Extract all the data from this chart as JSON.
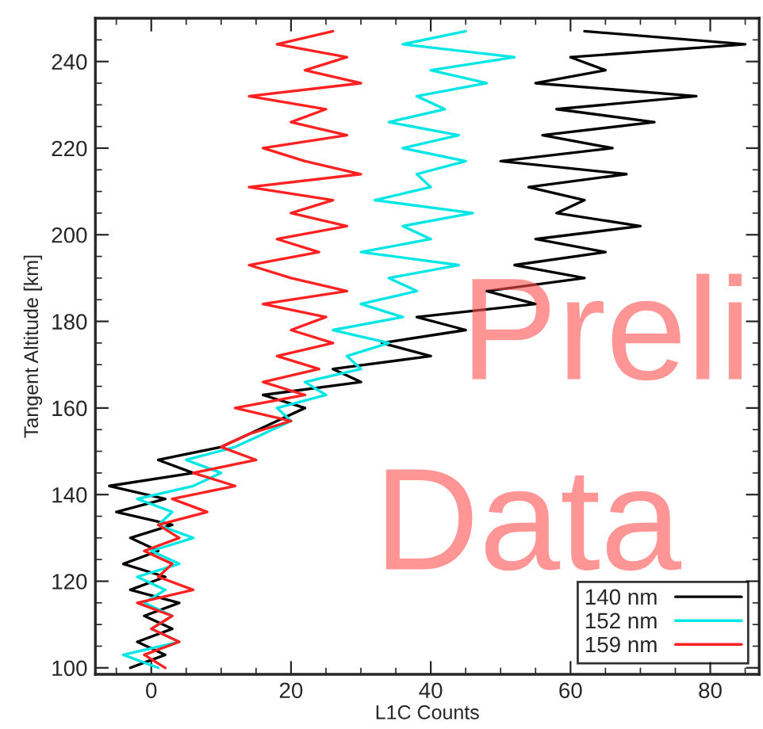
{
  "chart_data": {
    "type": "line",
    "orientation": "horizontal",
    "xlabel": "L1C Counts",
    "ylabel": "Tangent Altitude [km]",
    "xlim": [
      -8,
      87
    ],
    "xticks": [
      0,
      20,
      40,
      60,
      80
    ],
    "ylim": [
      98.5,
      250
    ],
    "yticks": [
      100,
      120,
      140,
      160,
      180,
      200,
      220,
      240
    ],
    "legend": "bottom right",
    "grid": false,
    "marker": "none",
    "line_style": "solid",
    "annotations": [
      "Preli",
      "Data"
    ],
    "series": [
      {
        "name": "140 nm",
        "color": "#000000",
        "x": [
          100,
          103,
          106,
          109,
          112,
          115,
          118,
          121,
          124,
          127,
          130,
          133,
          136,
          139,
          142,
          145,
          148,
          151,
          154,
          157,
          160,
          163,
          166,
          169,
          172,
          175,
          178,
          181,
          184,
          187,
          190,
          193,
          196,
          199,
          202,
          205,
          208,
          211,
          214,
          217,
          220,
          223,
          226,
          229,
          232,
          235,
          238,
          241,
          244,
          247
        ],
        "values": [
          -3,
          2,
          -2,
          3,
          -1,
          4,
          -3,
          2,
          -4,
          1,
          -3,
          3,
          -5,
          2,
          -6,
          6,
          1,
          10,
          14,
          18,
          22,
          16,
          30,
          26,
          40,
          33,
          45,
          38,
          55,
          48,
          62,
          52,
          65,
          55,
          70,
          58,
          62,
          54,
          68,
          50,
          66,
          56,
          72,
          58,
          78,
          55,
          65,
          60,
          85,
          62
        ]
      },
      {
        "name": "152 nm",
        "color": "#00e5e5",
        "x": [
          100,
          103,
          106,
          109,
          112,
          115,
          118,
          121,
          124,
          127,
          130,
          133,
          136,
          139,
          142,
          145,
          148,
          151,
          154,
          157,
          160,
          163,
          166,
          169,
          172,
          175,
          178,
          181,
          184,
          187,
          190,
          193,
          196,
          199,
          202,
          205,
          208,
          211,
          214,
          217,
          220,
          223,
          226,
          229,
          232,
          235,
          238,
          241,
          244,
          247
        ],
        "values": [
          1,
          -4,
          4,
          0,
          3,
          -1,
          2,
          -2,
          4,
          0,
          6,
          1,
          3,
          -2,
          6,
          10,
          5,
          12,
          16,
          20,
          18,
          25,
          22,
          30,
          28,
          34,
          26,
          36,
          30,
          38,
          34,
          44,
          30,
          40,
          36,
          46,
          32,
          40,
          38,
          45,
          36,
          44,
          34,
          42,
          38,
          48,
          40,
          52,
          36,
          45
        ]
      },
      {
        "name": "159 nm",
        "color": "#ff2020",
        "x": [
          100,
          103,
          106,
          109,
          112,
          115,
          118,
          121,
          124,
          127,
          130,
          133,
          136,
          139,
          142,
          145,
          148,
          151,
          154,
          157,
          160,
          163,
          166,
          169,
          172,
          175,
          178,
          181,
          184,
          187,
          190,
          193,
          196,
          199,
          202,
          205,
          208,
          211,
          214,
          217,
          220,
          223,
          226,
          229,
          232,
          235,
          238,
          241,
          244,
          247
        ],
        "values": [
          2,
          -1,
          4,
          0,
          3,
          -2,
          6,
          1,
          3,
          -1,
          4,
          1,
          8,
          3,
          12,
          6,
          15,
          10,
          14,
          20,
          12,
          22,
          16,
          24,
          18,
          26,
          20,
          25,
          16,
          28,
          20,
          14,
          24,
          18,
          28,
          20,
          26,
          14,
          30,
          22,
          16,
          28,
          20,
          25,
          14,
          30,
          22,
          28,
          18,
          26
        ]
      }
    ]
  }
}
